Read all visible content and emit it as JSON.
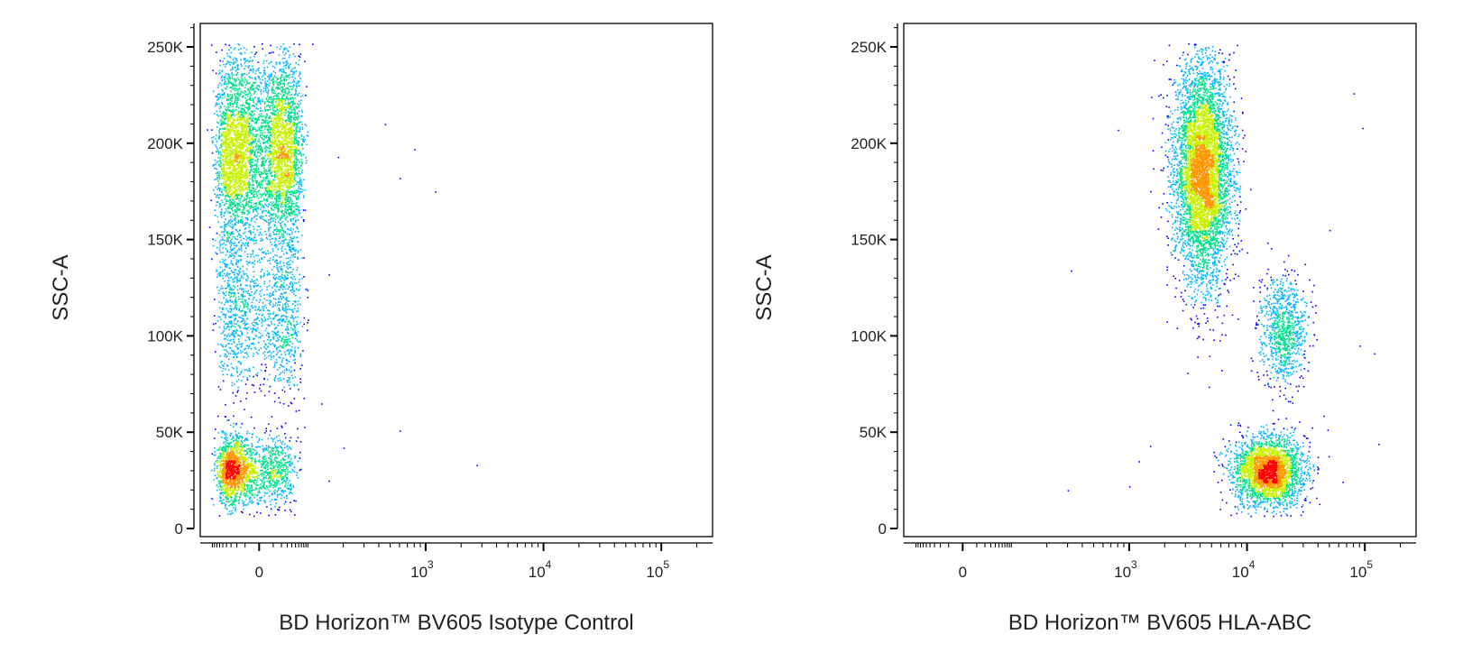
{
  "chart_data": [
    {
      "type": "scatter",
      "subtype": "flow-cytometry-density-dot-plot",
      "xlabel": "BD Horizon™ BV605 Isotype Control",
      "ylabel": "SSC-A",
      "x_scale": "biexponential (linear near 0, log above ~10^2)",
      "x_ticks": [
        {
          "value": 0,
          "label": "0"
        },
        {
          "value": 1000,
          "label": "10",
          "sup": "3"
        },
        {
          "value": 10000,
          "label": "10",
          "sup": "4"
        },
        {
          "value": 100000,
          "label": "10",
          "sup": "5"
        }
      ],
      "y_ticks": [
        {
          "value": 0,
          "label": "0"
        },
        {
          "value": 50000,
          "label": "50K"
        },
        {
          "value": 100000,
          "label": "100K"
        },
        {
          "value": 150000,
          "label": "150K"
        },
        {
          "value": 200000,
          "label": "200K"
        },
        {
          "value": 250000,
          "label": "250K"
        }
      ],
      "ylim": [
        0,
        262144
      ],
      "populations": [
        {
          "x_center": 0,
          "x_spread": 30,
          "y_center": 195000,
          "y_spread": 26000,
          "count": 5200,
          "density_peak": "high"
        },
        {
          "x_center": 0,
          "x_spread": 30,
          "y_center": 110000,
          "y_spread": 20000,
          "count": 1300,
          "density_peak": "medium"
        },
        {
          "x_center": -15,
          "x_spread": 25,
          "y_center": 30000,
          "y_spread": 9000,
          "count": 2000,
          "density_peak": "high"
        }
      ],
      "outliers": [
        {
          "x": 450,
          "y": 210000
        },
        {
          "x": 800,
          "y": 197000
        },
        {
          "x": 600,
          "y": 182000
        },
        {
          "x": 1200,
          "y": 175000
        },
        {
          "x": 180,
          "y": 193000
        },
        {
          "x": 150,
          "y": 132000
        },
        {
          "x": 130,
          "y": 65000
        },
        {
          "x": 600,
          "y": 51000
        },
        {
          "x": 200,
          "y": 42000
        },
        {
          "x": 2700,
          "y": 33000
        },
        {
          "x": 150,
          "y": 25000
        }
      ],
      "colormap": [
        "#0000ff",
        "#00b4ff",
        "#00e08c",
        "#c8f000",
        "#ff9600",
        "#ff0000"
      ]
    },
    {
      "type": "scatter",
      "subtype": "flow-cytometry-density-dot-plot",
      "xlabel": "BD Horizon™ BV605 HLA-ABC",
      "ylabel": "SSC-A",
      "x_scale": "biexponential (linear near 0, log above ~10^2)",
      "x_ticks": [
        {
          "value": 0,
          "label": "0"
        },
        {
          "value": 1000,
          "label": "10",
          "sup": "3"
        },
        {
          "value": 10000,
          "label": "10",
          "sup": "4"
        },
        {
          "value": 100000,
          "label": "10",
          "sup": "5"
        }
      ],
      "y_ticks": [
        {
          "value": 0,
          "label": "0"
        },
        {
          "value": 50000,
          "label": "50K"
        },
        {
          "value": 100000,
          "label": "100K"
        },
        {
          "value": 150000,
          "label": "150K"
        },
        {
          "value": 200000,
          "label": "200K"
        },
        {
          "value": 250000,
          "label": "250K"
        }
      ],
      "ylim": [
        0,
        262144
      ],
      "populations": [
        {
          "x_center": 4200,
          "x_log_spread": 0.12,
          "y_center": 185000,
          "y_spread": 28000,
          "count": 5500,
          "density_peak": "high"
        },
        {
          "x_center": 20000,
          "x_log_spread": 0.1,
          "y_center": 103000,
          "y_spread": 14000,
          "count": 900,
          "density_peak": "medium"
        },
        {
          "x_center": 15000,
          "x_log_spread": 0.15,
          "y_center": 30000,
          "y_spread": 9000,
          "count": 2800,
          "density_peak": "high"
        }
      ],
      "outliers": [
        {
          "x": 320,
          "y": 134000
        },
        {
          "x": 800,
          "y": 207000
        },
        {
          "x": 1200,
          "y": 35000
        },
        {
          "x": 1500,
          "y": 43000
        },
        {
          "x": 300,
          "y": 20000
        },
        {
          "x": 1000,
          "y": 22000
        },
        {
          "x": 80000,
          "y": 226000
        },
        {
          "x": 95000,
          "y": 208000
        },
        {
          "x": 120000,
          "y": 91000
        },
        {
          "x": 130000,
          "y": 44000
        },
        {
          "x": 90000,
          "y": 95000
        },
        {
          "x": 50000,
          "y": 155000
        }
      ],
      "colormap": [
        "#0000ff",
        "#00b4ff",
        "#00e08c",
        "#c8f000",
        "#ff9600",
        "#ff0000"
      ]
    }
  ]
}
